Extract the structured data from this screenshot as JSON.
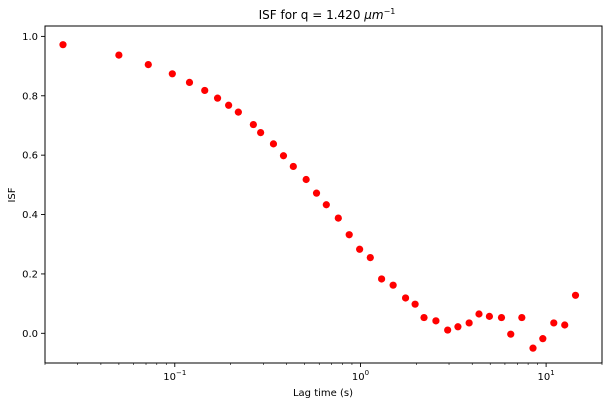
{
  "chart_data": {
    "type": "scatter",
    "title_main": "ISF for q = 1.420 ",
    "title_unit": "μm",
    "title_exp": "−1",
    "xlabel": "Lag time (s)",
    "ylabel": "ISF",
    "xscale": "log",
    "xlim": [
      0.02,
      20
    ],
    "ylim": [
      -0.1,
      1.035
    ],
    "x_ticks": [
      {
        "value": 0.1,
        "base": "10",
        "exp": "−1"
      },
      {
        "value": 1,
        "base": "10",
        "exp": "0"
      },
      {
        "value": 10,
        "base": "10",
        "exp": "1"
      }
    ],
    "y_ticks": [
      {
        "value": 0.0,
        "label": "0.0"
      },
      {
        "value": 0.2,
        "label": "0.2"
      },
      {
        "value": 0.4,
        "label": "0.4"
      },
      {
        "value": 0.6,
        "label": "0.6"
      },
      {
        "value": 0.8,
        "label": "0.8"
      },
      {
        "value": 1.0,
        "label": "1.0"
      }
    ],
    "grid": false,
    "marker_color": "#ff0000",
    "points": [
      {
        "x": 0.025,
        "y": 0.972
      },
      {
        "x": 0.05,
        "y": 0.937
      },
      {
        "x": 0.072,
        "y": 0.905
      },
      {
        "x": 0.097,
        "y": 0.874
      },
      {
        "x": 0.12,
        "y": 0.845
      },
      {
        "x": 0.145,
        "y": 0.818
      },
      {
        "x": 0.17,
        "y": 0.792
      },
      {
        "x": 0.195,
        "y": 0.768
      },
      {
        "x": 0.22,
        "y": 0.745
      },
      {
        "x": 0.265,
        "y": 0.703
      },
      {
        "x": 0.29,
        "y": 0.676
      },
      {
        "x": 0.34,
        "y": 0.638
      },
      {
        "x": 0.385,
        "y": 0.598
      },
      {
        "x": 0.435,
        "y": 0.562
      },
      {
        "x": 0.51,
        "y": 0.518
      },
      {
        "x": 0.58,
        "y": 0.472
      },
      {
        "x": 0.655,
        "y": 0.433
      },
      {
        "x": 0.76,
        "y": 0.388
      },
      {
        "x": 0.87,
        "y": 0.332
      },
      {
        "x": 0.99,
        "y": 0.283
      },
      {
        "x": 1.13,
        "y": 0.255
      },
      {
        "x": 1.3,
        "y": 0.183
      },
      {
        "x": 1.5,
        "y": 0.162
      },
      {
        "x": 1.75,
        "y": 0.119
      },
      {
        "x": 1.97,
        "y": 0.098
      },
      {
        "x": 2.2,
        "y": 0.053
      },
      {
        "x": 2.55,
        "y": 0.042
      },
      {
        "x": 2.95,
        "y": 0.011
      },
      {
        "x": 3.35,
        "y": 0.022
      },
      {
        "x": 3.85,
        "y": 0.035
      },
      {
        "x": 4.35,
        "y": 0.065
      },
      {
        "x": 4.95,
        "y": 0.057
      },
      {
        "x": 5.75,
        "y": 0.053
      },
      {
        "x": 6.45,
        "y": -0.003
      },
      {
        "x": 7.4,
        "y": 0.053
      },
      {
        "x": 8.5,
        "y": -0.05
      },
      {
        "x": 9.6,
        "y": -0.018
      },
      {
        "x": 11.0,
        "y": 0.035
      },
      {
        "x": 12.6,
        "y": 0.028
      },
      {
        "x": 14.4,
        "y": 0.128
      }
    ]
  }
}
